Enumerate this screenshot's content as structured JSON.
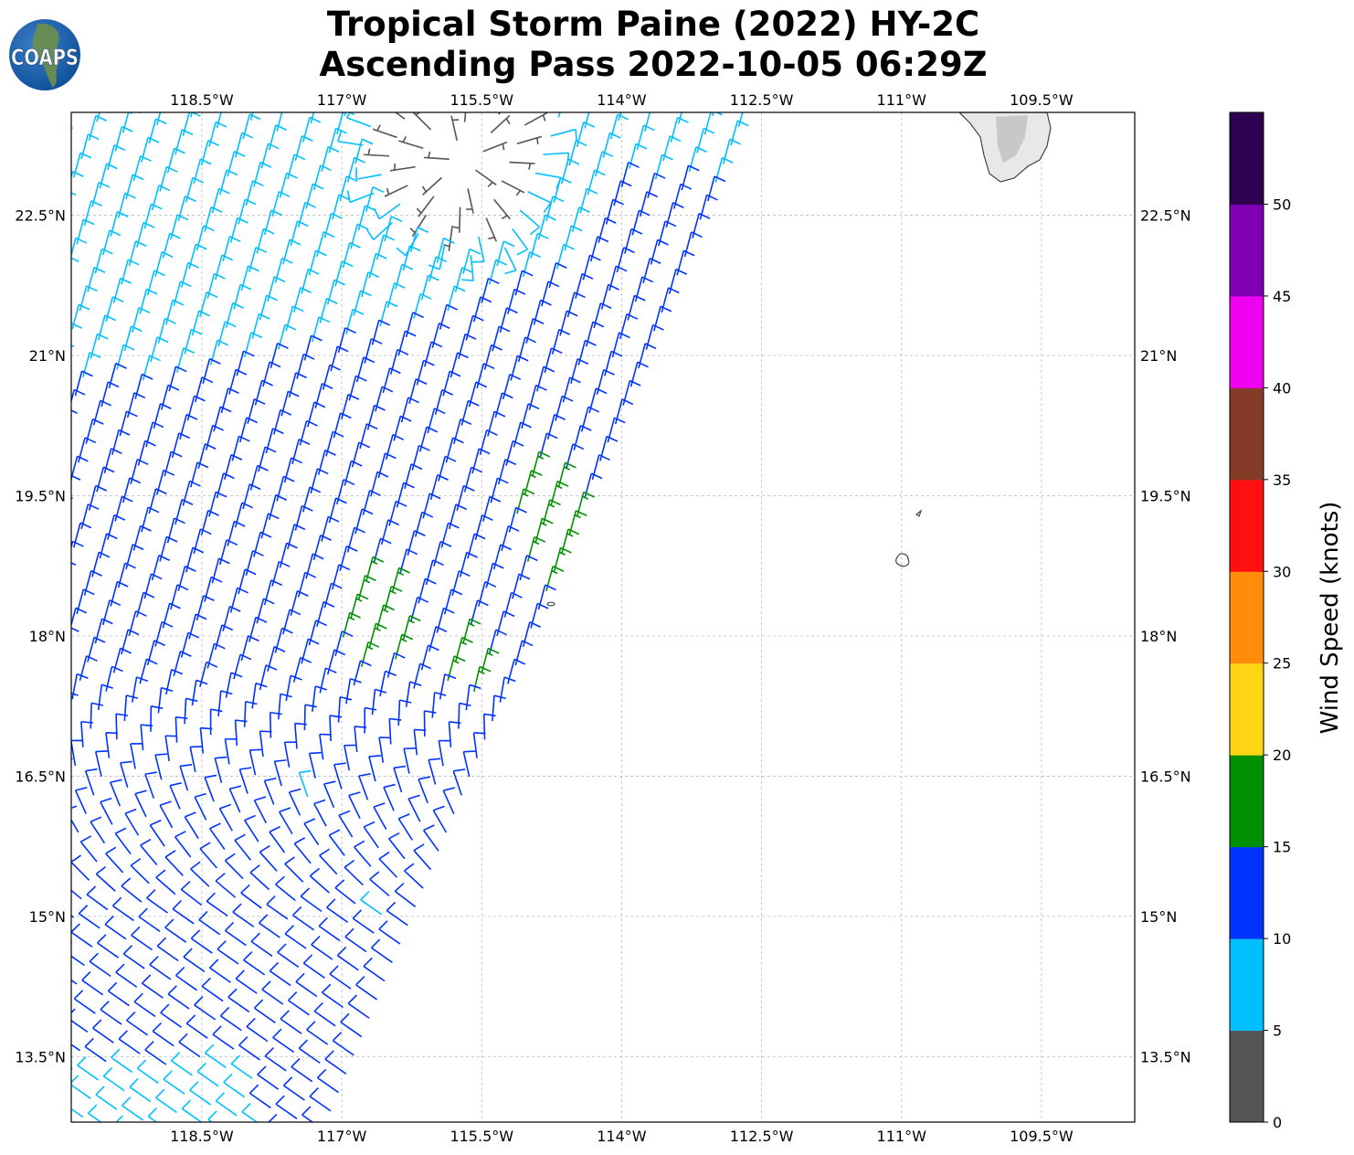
{
  "title": {
    "line1": "Tropical Storm Paine (2022) HY-2C",
    "line2": "Ascending Pass 2022-10-05 06:29Z"
  },
  "logo": {
    "text": "COAPS"
  },
  "map": {
    "lon_ticks": [
      "118.5°W",
      "117°W",
      "115.5°W",
      "114°W",
      "112.5°W",
      "111°W",
      "109.5°W"
    ],
    "lat_ticks": [
      "22.5°N",
      "21°N",
      "19.5°N",
      "18°N",
      "16.5°N",
      "15°N",
      "13.5°N"
    ],
    "lon_values": [
      -118.5,
      -117,
      -115.5,
      -114,
      -112.5,
      -111,
      -109.5
    ],
    "lat_values": [
      22.5,
      21,
      19.5,
      18,
      16.5,
      15,
      13.5
    ],
    "extent": {
      "lon": [
        -119.9,
        -108.5
      ],
      "lat": [
        12.8,
        23.6
      ]
    },
    "gridlines": true
  },
  "colorbar": {
    "label": "Wind Speed (knots)",
    "ticks": [
      "0",
      "5",
      "10",
      "15",
      "20",
      "25",
      "30",
      "35",
      "40",
      "45",
      "50"
    ],
    "bounds": [
      0,
      5,
      10,
      15,
      20,
      25,
      30,
      35,
      40,
      45,
      50,
      55
    ],
    "colors": [
      "#555555",
      "#00bfff",
      "#0033ff",
      "#009000",
      "#ffd414",
      "#ff8c0a",
      "#ff0f0f",
      "#843c28",
      "#f000f0",
      "#8000b4",
      "#2d0050"
    ]
  }
}
